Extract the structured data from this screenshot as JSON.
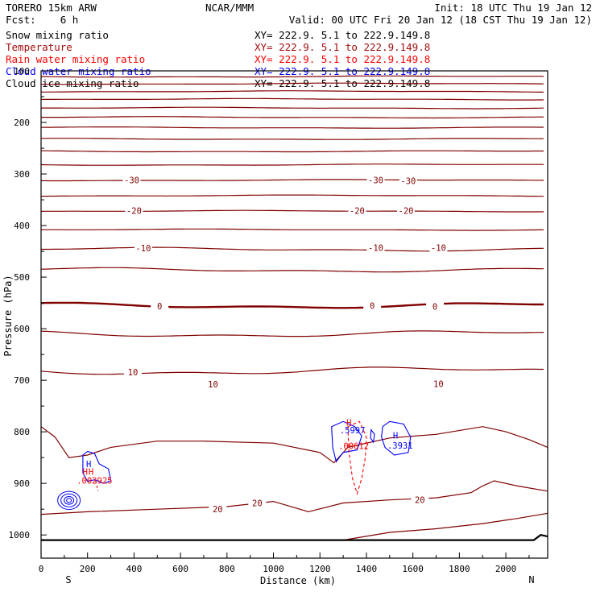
{
  "header": {
    "model": "TORERO  15km ARW",
    "center": "NCAR/MMM",
    "init": "Init: 18 UTC Thu 19 Jan 12",
    "forecast": "Fcst:    6 h",
    "valid": "Valid: 00 UTC Fri 20 Jan 12 (18 CST Thu 19 Jan 12)"
  },
  "fields": [
    {
      "name": "Snow mixing ratio",
      "xy": "XY= 222.9.  5.1 to 222.9.149.8",
      "color": "#000000"
    },
    {
      "name": "Temperature",
      "xy": "XY= 222.9.  5.1 to 222.9.149.8",
      "color": "#a01010"
    },
    {
      "name": "Rain water mixing ratio",
      "xy": "XY= 222.9.  5.1 to 222.9.149.8",
      "color": "#ff0000"
    },
    {
      "name": "Cloud water mixing ratio",
      "xy": "XY= 222.9.  5.1 to 222.9.149.8",
      "color": "#0000ff"
    },
    {
      "name": "Cloud ice mixing ratio",
      "xy": "XY= 222.9.  5.1 to 222.9.149.8",
      "color": "#000000"
    }
  ],
  "chart_data": {
    "type": "line",
    "title": "",
    "xlabel": "Distance (km)",
    "ylabel": "Pressure (hPa)",
    "xlim": [
      0,
      2180
    ],
    "ylim": [
      1045,
      100
    ],
    "xticks": [
      "0",
      "200",
      "400",
      "600",
      "800",
      "1000",
      "1200",
      "1400",
      "1600",
      "1800",
      "2000"
    ],
    "xtick_values": [
      0,
      200,
      400,
      600,
      800,
      1000,
      1200,
      1400,
      1600,
      1800,
      2000
    ],
    "yticks": [
      "100",
      "200",
      "300",
      "400",
      "500",
      "600",
      "700",
      "800",
      "900",
      "1000"
    ],
    "ytick_values": [
      100,
      200,
      300,
      400,
      500,
      600,
      700,
      800,
      900,
      1000
    ],
    "endpoints": {
      "left": "S",
      "right": "N"
    },
    "temperature_levels": [
      {
        "p": 111,
        "label": ""
      },
      {
        "p": 125,
        "label": ""
      },
      {
        "p": 140,
        "label": ""
      },
      {
        "p": 155,
        "label": ""
      },
      {
        "p": 172,
        "label": ""
      },
      {
        "p": 190,
        "label": ""
      },
      {
        "p": 210,
        "label": ""
      },
      {
        "p": 232,
        "label": ""
      },
      {
        "p": 256,
        "label": ""
      },
      {
        "p": 282,
        "label": ""
      },
      {
        "p": 312,
        "label": "-30"
      },
      {
        "p": 342,
        "label": ""
      },
      {
        "p": 372,
        "label": "-20"
      },
      {
        "p": 408,
        "label": ""
      },
      {
        "p": 446,
        "label": "-10"
      },
      {
        "p": 486,
        "label": ""
      },
      {
        "p": 555,
        "label": "0"
      },
      {
        "p": 610,
        "label": ""
      },
      {
        "p": 682,
        "label": "10"
      }
    ],
    "labels": [
      {
        "text": "-30",
        "x": 390,
        "p": 312,
        "color": "#800000"
      },
      {
        "text": "-30",
        "x": 1440,
        "p": 312,
        "color": "#800000"
      },
      {
        "text": "-30",
        "x": 1580,
        "p": 313,
        "color": "#800000"
      },
      {
        "text": "-20",
        "x": 400,
        "p": 371,
        "color": "#800000"
      },
      {
        "text": "-20",
        "x": 1360,
        "p": 371,
        "color": "#800000"
      },
      {
        "text": "-20",
        "x": 1570,
        "p": 371,
        "color": "#800000"
      },
      {
        "text": "-10",
        "x": 440,
        "p": 444,
        "color": "#800000"
      },
      {
        "text": "-10",
        "x": 1440,
        "p": 443,
        "color": "#800000"
      },
      {
        "text": "-10",
        "x": 1710,
        "p": 443,
        "color": "#800000"
      },
      {
        "text": "0",
        "x": 510,
        "p": 556,
        "color": "#800000"
      },
      {
        "text": "0",
        "x": 1425,
        "p": 555,
        "color": "#800000"
      },
      {
        "text": "0",
        "x": 1695,
        "p": 557,
        "color": "#800000"
      },
      {
        "text": "10",
        "x": 395,
        "p": 684,
        "color": "#800000"
      },
      {
        "text": "10",
        "x": 740,
        "p": 708,
        "color": "#800000"
      },
      {
        "text": "10",
        "x": 1710,
        "p": 707,
        "color": "#800000"
      },
      {
        "text": "20",
        "x": 760,
        "p": 950,
        "color": "#800000"
      },
      {
        "text": "20",
        "x": 930,
        "p": 938,
        "color": "#800000"
      },
      {
        "text": "20",
        "x": 1630,
        "p": 932,
        "color": "#800000"
      },
      {
        "text": "H",
        "x": 205,
        "p": 862,
        "color": "#0000ff"
      },
      {
        "text": "H",
        "x": 1325,
        "p": 782,
        "color": "#ff0000"
      },
      {
        "text": "H",
        "x": 1525,
        "p": 807,
        "color": "#0000ff"
      },
      {
        "text": "H",
        "x": 190,
        "p": 877,
        "color": "#ff0000"
      },
      {
        "text": "H",
        "x": 215,
        "p": 877,
        "color": "#ff0000"
      },
      {
        "text": ".5997",
        "x": 1340,
        "p": 797,
        "color": "#0000ff"
      },
      {
        "text": ".00612",
        "x": 1345,
        "p": 827,
        "color": "#ff0000"
      },
      {
        "text": ".3931",
        "x": 1545,
        "p": 826,
        "color": "#0000ff"
      },
      {
        "text": ".002925",
        "x": 230,
        "p": 894,
        "color": "#ff0000"
      }
    ]
  }
}
